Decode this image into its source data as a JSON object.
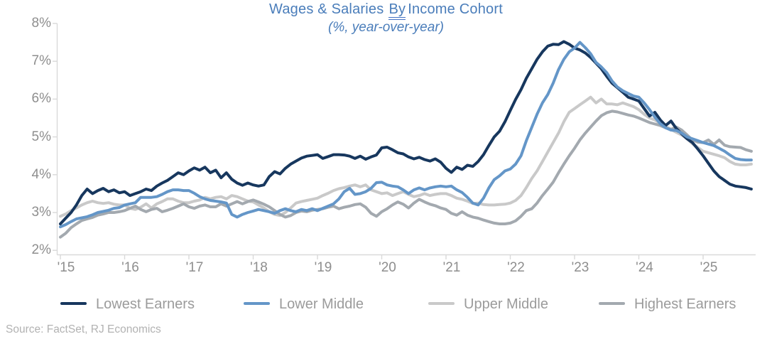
{
  "title": {
    "prefix": "Wages & Salaries",
    "underlined_word": "By",
    "suffix": "Income Cohort"
  },
  "subtitle": "(%, year-over-year)",
  "source": "Source: FactSet, RJ Economics",
  "colors": {
    "title_text": "#4a7dba",
    "grammar_underline": "#4472c4",
    "axis_line": "#d9d9d9",
    "tick_label": "#8e8e8e",
    "legend_label": "#9b9b9b",
    "source_text": "#b2b2b2"
  },
  "chart_data": {
    "type": "line",
    "title": "Wages & Salaries By Income Cohort",
    "subtitle": "(%, year-over-year)",
    "x_start": "Jan 2015",
    "x_frequency": "monthly",
    "x_end": "Oct 2025",
    "ylim": [
      2,
      8
    ],
    "grid": false,
    "legend_position": "bottom",
    "y_ticks": [
      {
        "value": 8,
        "label": "8%"
      },
      {
        "value": 7,
        "label": "7%"
      },
      {
        "value": 6,
        "label": "6%"
      },
      {
        "value": 5,
        "label": "5%"
      },
      {
        "value": 4,
        "label": "4%"
      },
      {
        "value": 3,
        "label": "3%"
      },
      {
        "value": 2,
        "label": "2%"
      }
    ],
    "x_ticks": [
      {
        "year": 2015,
        "label": "'15"
      },
      {
        "year": 2016,
        "label": "'16"
      },
      {
        "year": 2017,
        "label": "'17"
      },
      {
        "year": 2018,
        "label": "'18"
      },
      {
        "year": 2019,
        "label": "'19"
      },
      {
        "year": 2020,
        "label": "'20"
      },
      {
        "year": 2021,
        "label": "'21"
      },
      {
        "year": 2022,
        "label": "'22"
      },
      {
        "year": 2023,
        "label": "'23"
      },
      {
        "year": 2024,
        "label": "'24"
      },
      {
        "year": 2025,
        "label": "'25"
      }
    ],
    "series": [
      {
        "name": "Lowest Earners",
        "color": "#17375e",
        "values": [
          2.7,
          2.85,
          3.0,
          3.2,
          3.45,
          3.62,
          3.5,
          3.58,
          3.64,
          3.55,
          3.6,
          3.52,
          3.55,
          3.45,
          3.5,
          3.55,
          3.62,
          3.58,
          3.7,
          3.78,
          3.85,
          3.95,
          4.05,
          4.0,
          4.1,
          4.18,
          4.12,
          4.2,
          4.05,
          4.12,
          3.92,
          4.05,
          3.88,
          3.78,
          3.72,
          3.78,
          3.73,
          3.7,
          3.73,
          3.95,
          4.08,
          4.02,
          4.17,
          4.28,
          4.36,
          4.44,
          4.49,
          4.51,
          4.53,
          4.43,
          4.48,
          4.53,
          4.53,
          4.52,
          4.49,
          4.43,
          4.49,
          4.41,
          4.47,
          4.52,
          4.71,
          4.73,
          4.66,
          4.58,
          4.55,
          4.47,
          4.42,
          4.46,
          4.4,
          4.36,
          4.42,
          4.33,
          4.17,
          4.06,
          4.2,
          4.14,
          4.25,
          4.22,
          4.35,
          4.53,
          4.77,
          5.0,
          5.15,
          5.4,
          5.7,
          5.99,
          6.25,
          6.55,
          6.8,
          7.05,
          7.25,
          7.4,
          7.45,
          7.44,
          7.52,
          7.45,
          7.35,
          7.3,
          7.22,
          7.1,
          6.95,
          6.8,
          6.6,
          6.42,
          6.3,
          6.18,
          6.05,
          6.0,
          5.95,
          5.75,
          5.55,
          5.65,
          5.45,
          5.3,
          5.42,
          5.22,
          5.08,
          4.95,
          4.85,
          4.68,
          4.5,
          4.3,
          4.1,
          3.95,
          3.85,
          3.75,
          3.7,
          3.68,
          3.66,
          3.62
        ]
      },
      {
        "name": "Lower Middle",
        "color": "#6496c8",
        "values": [
          2.62,
          2.68,
          2.76,
          2.83,
          2.86,
          2.89,
          2.94,
          3.0,
          3.03,
          3.06,
          3.11,
          3.13,
          3.2,
          3.23,
          3.26,
          3.4,
          3.4,
          3.4,
          3.42,
          3.48,
          3.55,
          3.6,
          3.6,
          3.58,
          3.58,
          3.51,
          3.42,
          3.36,
          3.32,
          3.3,
          3.28,
          3.25,
          2.95,
          2.88,
          2.95,
          3.0,
          3.04,
          3.08,
          3.05,
          3.02,
          2.98,
          3.05,
          3.1,
          3.05,
          3.02,
          3.08,
          3.05,
          3.1,
          3.05,
          3.11,
          3.17,
          3.23,
          3.36,
          3.55,
          3.64,
          3.48,
          3.5,
          3.55,
          3.64,
          3.79,
          3.8,
          3.73,
          3.7,
          3.68,
          3.6,
          3.5,
          3.6,
          3.65,
          3.6,
          3.65,
          3.68,
          3.7,
          3.68,
          3.7,
          3.6,
          3.53,
          3.4,
          3.25,
          3.2,
          3.38,
          3.65,
          3.87,
          3.97,
          4.1,
          4.15,
          4.28,
          4.5,
          4.9,
          5.25,
          5.6,
          5.9,
          6.12,
          6.42,
          6.78,
          7.05,
          7.25,
          7.35,
          7.5,
          7.36,
          7.2,
          6.97,
          6.85,
          6.7,
          6.48,
          6.32,
          6.22,
          6.15,
          6.08,
          6.05,
          5.9,
          5.72,
          5.52,
          5.35,
          5.24,
          5.18,
          5.17,
          5.1,
          5.0,
          4.95,
          4.9,
          4.85,
          4.81,
          4.77,
          4.7,
          4.62,
          4.52,
          4.43,
          4.4,
          4.39,
          4.39
        ]
      },
      {
        "name": "Upper Middle",
        "color": "#c9c9c9",
        "values": [
          2.9,
          2.96,
          3.05,
          3.12,
          3.2,
          3.26,
          3.3,
          3.26,
          3.24,
          3.26,
          3.22,
          3.2,
          3.2,
          3.11,
          3.08,
          3.14,
          3.23,
          3.12,
          3.23,
          3.29,
          3.36,
          3.36,
          3.3,
          3.26,
          3.26,
          3.3,
          3.33,
          3.4,
          3.36,
          3.4,
          3.42,
          3.36,
          3.45,
          3.42,
          3.36,
          3.3,
          3.28,
          3.2,
          3.12,
          3.02,
          2.95,
          2.92,
          3.0,
          3.12,
          3.25,
          3.29,
          3.32,
          3.35,
          3.38,
          3.45,
          3.51,
          3.58,
          3.63,
          3.66,
          3.7,
          3.73,
          3.68,
          3.73,
          3.6,
          3.55,
          3.5,
          3.52,
          3.45,
          3.5,
          3.55,
          3.48,
          3.42,
          3.45,
          3.5,
          3.45,
          3.48,
          3.5,
          3.5,
          3.45,
          3.38,
          3.35,
          3.3,
          3.24,
          3.25,
          3.21,
          3.2,
          3.2,
          3.21,
          3.22,
          3.25,
          3.32,
          3.45,
          3.66,
          3.9,
          4.1,
          4.35,
          4.6,
          4.85,
          5.1,
          5.4,
          5.65,
          5.75,
          5.85,
          5.95,
          6.05,
          5.9,
          6.0,
          5.87,
          5.87,
          5.85,
          5.9,
          5.85,
          5.8,
          5.72,
          5.6,
          5.5,
          5.45,
          5.35,
          5.28,
          5.2,
          5.12,
          5.05,
          4.95,
          4.82,
          4.72,
          4.62,
          4.58,
          4.54,
          4.5,
          4.45,
          4.35,
          4.28,
          4.26,
          4.26,
          4.28
        ]
      },
      {
        "name": "Highest Earners",
        "color": "#a3a9af",
        "values": [
          2.35,
          2.45,
          2.6,
          2.7,
          2.79,
          2.83,
          2.87,
          2.93,
          2.96,
          3.0,
          3.0,
          3.02,
          3.05,
          3.11,
          3.17,
          3.08,
          3.02,
          3.08,
          3.11,
          3.02,
          3.06,
          3.11,
          3.17,
          3.23,
          3.15,
          3.11,
          3.17,
          3.2,
          3.15,
          3.15,
          3.23,
          3.17,
          3.23,
          3.29,
          3.23,
          3.29,
          3.33,
          3.28,
          3.22,
          3.15,
          3.05,
          2.95,
          2.88,
          2.92,
          3.0,
          3.04,
          3.02,
          3.06,
          3.08,
          3.1,
          3.14,
          3.17,
          3.1,
          3.14,
          3.17,
          3.21,
          3.23,
          3.14,
          2.98,
          2.9,
          3.02,
          3.1,
          3.2,
          3.28,
          3.22,
          3.12,
          3.25,
          3.35,
          3.28,
          3.22,
          3.18,
          3.12,
          3.08,
          2.98,
          2.93,
          3.02,
          2.93,
          2.88,
          2.85,
          2.8,
          2.76,
          2.72,
          2.7,
          2.7,
          2.72,
          2.78,
          2.9,
          3.05,
          3.1,
          3.25,
          3.45,
          3.62,
          3.8,
          4.05,
          4.28,
          4.5,
          4.7,
          4.92,
          5.1,
          5.26,
          5.42,
          5.56,
          5.64,
          5.68,
          5.66,
          5.62,
          5.58,
          5.55,
          5.5,
          5.44,
          5.38,
          5.34,
          5.3,
          5.24,
          5.2,
          5.26,
          5.18,
          5.05,
          4.92,
          4.86,
          4.85,
          4.92,
          4.8,
          4.92,
          4.78,
          4.74,
          4.73,
          4.72,
          4.66,
          4.62
        ]
      }
    ]
  }
}
